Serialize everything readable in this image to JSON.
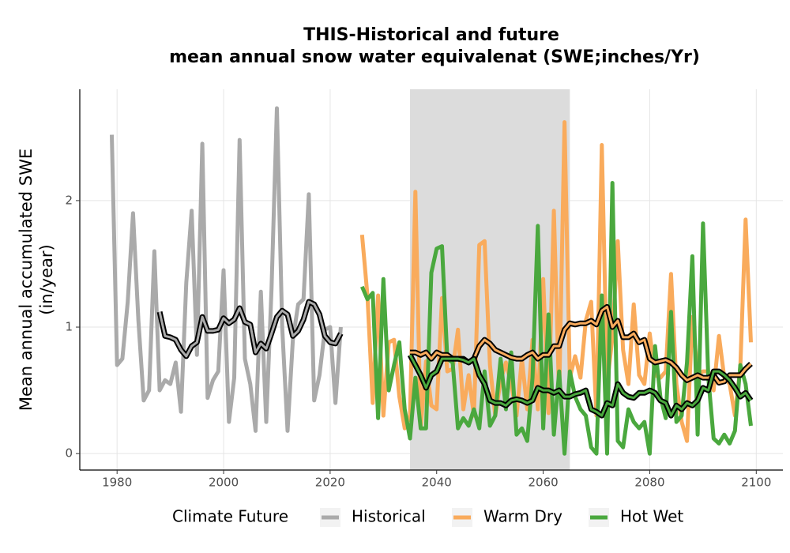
{
  "chart_data": {
    "type": "line",
    "title": [
      "THIS-Historical and future",
      "mean annual snow water equivalenat (SWE;inches/Yr)"
    ],
    "y_label": [
      "Mean annual accumulated SWE",
      "(in/year)"
    ],
    "legend_title": "Climate Future",
    "xlim": [
      1973,
      2105
    ],
    "ylim": [
      -0.13,
      2.88
    ],
    "xticks": [
      1980,
      2000,
      2020,
      2040,
      2060,
      2080,
      2100
    ],
    "yticks": [
      0,
      1,
      2
    ],
    "grid": true,
    "highlight": [
      2035,
      2065
    ],
    "highlight_color": "#dcdcdc",
    "trend_outline_color": "#000000",
    "series": [
      {
        "name": "Historical",
        "color": "#aaaaaa",
        "x": [
          1979,
          1980,
          1981,
          1982,
          1983,
          1984,
          1985,
          1986,
          1987,
          1988,
          1989,
          1990,
          1991,
          1992,
          1993,
          1994,
          1995,
          1996,
          1997,
          1998,
          1999,
          2000,
          2001,
          2002,
          2003,
          2004,
          2005,
          2006,
          2007,
          2008,
          2009,
          2010,
          2011,
          2012,
          2013,
          2014,
          2015,
          2016,
          2017,
          2018,
          2019,
          2020,
          2021,
          2022
        ],
        "values": [
          2.52,
          0.7,
          0.75,
          1.2,
          1.9,
          1.05,
          0.42,
          0.5,
          1.6,
          0.5,
          0.58,
          0.55,
          0.72,
          0.33,
          1.35,
          1.92,
          0.78,
          2.45,
          0.44,
          0.58,
          0.65,
          1.45,
          0.25,
          0.6,
          2.48,
          0.75,
          0.55,
          0.18,
          1.28,
          0.25,
          1.3,
          2.73,
          1.0,
          0.18,
          0.9,
          1.18,
          1.22,
          2.05,
          0.42,
          0.62,
          0.98,
          1.0,
          0.4,
          1.0
        ],
        "trend": {
          "x": [
            1988,
            1989,
            1990,
            1991,
            1992,
            1993,
            1994,
            1995,
            1996,
            1997,
            1998,
            1999,
            2000,
            2001,
            2002,
            2003,
            2004,
            2005,
            2006,
            2007,
            2008,
            2009,
            2010,
            2011,
            2012,
            2013,
            2014,
            2015,
            2016,
            2017,
            2018,
            2019,
            2020,
            2021,
            2022
          ],
          "values": [
            1.12,
            0.93,
            0.92,
            0.9,
            0.82,
            0.77,
            0.85,
            0.88,
            1.08,
            0.97,
            0.97,
            0.98,
            1.07,
            1.03,
            1.06,
            1.15,
            1.04,
            1.02,
            0.8,
            0.87,
            0.83,
            0.95,
            1.08,
            1.13,
            1.1,
            0.93,
            0.97,
            1.06,
            1.2,
            1.18,
            1.1,
            0.93,
            0.88,
            0.87,
            0.95
          ]
        }
      },
      {
        "name": "Warm Dry",
        "color": "#f9ab5c",
        "x": [
          2026,
          2027,
          2028,
          2029,
          2030,
          2031,
          2032,
          2033,
          2034,
          2035,
          2036,
          2037,
          2038,
          2039,
          2040,
          2041,
          2042,
          2043,
          2044,
          2045,
          2046,
          2047,
          2048,
          2049,
          2050,
          2051,
          2052,
          2053,
          2054,
          2055,
          2056,
          2057,
          2058,
          2059,
          2060,
          2061,
          2062,
          2063,
          2064,
          2065,
          2066,
          2067,
          2068,
          2069,
          2070,
          2071,
          2072,
          2073,
          2074,
          2075,
          2076,
          2077,
          2078,
          2079,
          2080,
          2081,
          2082,
          2083,
          2084,
          2085,
          2086,
          2087,
          2088,
          2089,
          2090,
          2091,
          2092,
          2093,
          2094,
          2095,
          2096,
          2097,
          2098,
          2099
        ],
        "values": [
          1.73,
          1.25,
          0.4,
          1.25,
          0.3,
          0.88,
          0.9,
          0.45,
          0.2,
          0.3,
          2.07,
          0.2,
          0.73,
          0.38,
          0.35,
          1.23,
          0.65,
          0.67,
          0.98,
          0.35,
          0.62,
          0.3,
          1.65,
          1.68,
          0.7,
          0.3,
          0.58,
          0.72,
          0.55,
          0.3,
          0.75,
          0.35,
          0.9,
          0.35,
          1.38,
          0.32,
          1.92,
          0.45,
          2.62,
          0.6,
          0.77,
          0.6,
          1.05,
          1.2,
          0.3,
          2.44,
          0.55,
          0.92,
          1.68,
          0.82,
          0.55,
          1.18,
          0.62,
          0.55,
          0.95,
          0.62,
          0.6,
          0.65,
          1.42,
          0.55,
          0.25,
          0.1,
          1.08,
          0.62,
          0.65,
          0.65,
          0.5,
          0.93,
          0.6,
          0.55,
          0.3,
          0.68,
          1.85,
          0.88
        ],
        "trend": {
          "x": [
            2035,
            2036,
            2037,
            2038,
            2039,
            2040,
            2041,
            2042,
            2043,
            2044,
            2045,
            2046,
            2047,
            2048,
            2049,
            2050,
            2051,
            2052,
            2053,
            2054,
            2055,
            2056,
            2057,
            2058,
            2059,
            2060,
            2061,
            2062,
            2063,
            2064,
            2065,
            2066,
            2067,
            2068,
            2069,
            2070,
            2071,
            2072,
            2073,
            2074,
            2075,
            2076,
            2077,
            2078,
            2079,
            2080,
            2081,
            2082,
            2083,
            2084,
            2085,
            2086,
            2087,
            2088,
            2089,
            2090,
            2091,
            2092,
            2093,
            2094,
            2095,
            2096,
            2097,
            2098,
            2099
          ],
          "values": [
            0.8,
            0.8,
            0.78,
            0.8,
            0.75,
            0.8,
            0.78,
            0.78,
            0.75,
            0.75,
            0.75,
            0.72,
            0.75,
            0.85,
            0.9,
            0.87,
            0.82,
            0.8,
            0.78,
            0.76,
            0.75,
            0.75,
            0.78,
            0.8,
            0.75,
            0.78,
            0.78,
            0.85,
            0.85,
            0.98,
            1.03,
            1.02,
            1.03,
            1.03,
            1.05,
            1.02,
            1.13,
            1.16,
            1.0,
            1.05,
            0.92,
            0.92,
            0.95,
            0.88,
            0.9,
            0.75,
            0.72,
            0.73,
            0.74,
            0.72,
            0.68,
            0.62,
            0.58,
            0.6,
            0.62,
            0.6,
            0.6,
            0.62,
            0.56,
            0.57,
            0.62,
            0.62,
            0.62,
            0.67,
            0.71
          ]
        }
      },
      {
        "name": "Hot Wet",
        "color": "#4aa83e",
        "x": [
          2026,
          2027,
          2028,
          2029,
          2030,
          2031,
          2032,
          2033,
          2034,
          2035,
          2036,
          2037,
          2038,
          2039,
          2040,
          2041,
          2042,
          2043,
          2044,
          2045,
          2046,
          2047,
          2048,
          2049,
          2050,
          2051,
          2052,
          2053,
          2054,
          2055,
          2056,
          2057,
          2058,
          2059,
          2060,
          2061,
          2062,
          2063,
          2064,
          2065,
          2066,
          2067,
          2068,
          2069,
          2070,
          2071,
          2072,
          2073,
          2074,
          2075,
          2076,
          2077,
          2078,
          2079,
          2080,
          2081,
          2082,
          2083,
          2084,
          2085,
          2086,
          2087,
          2088,
          2089,
          2090,
          2091,
          2092,
          2093,
          2094,
          2095,
          2096,
          2097,
          2098,
          2099
        ],
        "values": [
          1.32,
          1.22,
          1.27,
          0.28,
          1.38,
          0.5,
          0.7,
          0.88,
          0.35,
          0.12,
          0.6,
          0.2,
          0.2,
          1.43,
          1.62,
          1.64,
          0.75,
          0.72,
          0.2,
          0.28,
          0.22,
          0.35,
          0.2,
          0.65,
          0.22,
          0.3,
          0.75,
          0.35,
          0.8,
          0.15,
          0.2,
          0.1,
          0.6,
          1.8,
          0.2,
          1.1,
          0.15,
          0.65,
          0,
          0.65,
          0.45,
          0.35,
          0.3,
          0.05,
          0,
          1.25,
          0,
          2.14,
          0.1,
          0.05,
          0.35,
          0.25,
          0.2,
          0.25,
          0,
          0.85,
          0.45,
          0.28,
          1.12,
          0.25,
          0.3,
          0.72,
          1.56,
          0.15,
          1.82,
          0.6,
          0.12,
          0.08,
          0.15,
          0.08,
          0.18,
          0.7,
          0.55,
          0.22
        ],
        "trend": {
          "x": [
            2035,
            2036,
            2037,
            2038,
            2039,
            2040,
            2041,
            2042,
            2043,
            2044,
            2045,
            2046,
            2047,
            2048,
            2049,
            2050,
            2051,
            2052,
            2053,
            2054,
            2055,
            2056,
            2057,
            2058,
            2059,
            2060,
            2061,
            2062,
            2063,
            2064,
            2065,
            2066,
            2067,
            2068,
            2069,
            2070,
            2071,
            2072,
            2073,
            2074,
            2075,
            2076,
            2077,
            2078,
            2079,
            2080,
            2081,
            2082,
            2083,
            2084,
            2085,
            2086,
            2087,
            2088,
            2089,
            2090,
            2091,
            2092,
            2093,
            2094,
            2095,
            2096,
            2097,
            2098,
            2099
          ],
          "values": [
            0.78,
            0.7,
            0.62,
            0.52,
            0.62,
            0.65,
            0.75,
            0.75,
            0.75,
            0.75,
            0.74,
            0.72,
            0.75,
            0.62,
            0.55,
            0.42,
            0.4,
            0.4,
            0.38,
            0.42,
            0.43,
            0.42,
            0.4,
            0.42,
            0.52,
            0.5,
            0.5,
            0.48,
            0.5,
            0.45,
            0.45,
            0.47,
            0.48,
            0.5,
            0.35,
            0.33,
            0.3,
            0.4,
            0.38,
            0.55,
            0.48,
            0.45,
            0.44,
            0.48,
            0.48,
            0.5,
            0.48,
            0.42,
            0.4,
            0.3,
            0.38,
            0.35,
            0.4,
            0.38,
            0.42,
            0.52,
            0.5,
            0.65,
            0.65,
            0.62,
            0.58,
            0.52,
            0.45,
            0.48,
            0.42
          ]
        }
      }
    ]
  }
}
